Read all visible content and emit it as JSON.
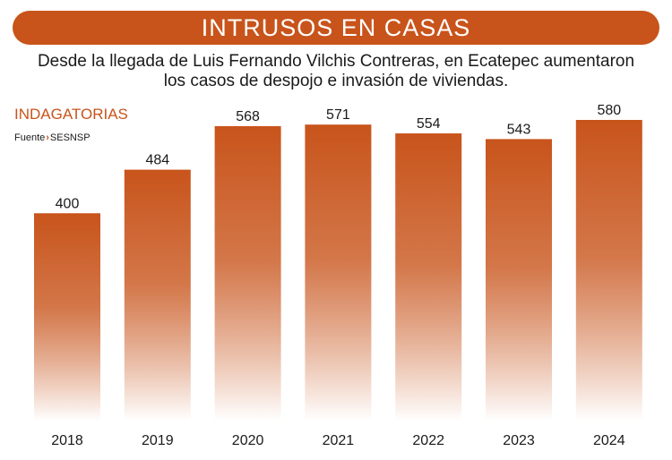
{
  "header": {
    "title": "INTRUSOS EN CASAS",
    "subtitle_line1": "Desde la llegada de Luis Fernando Vilchis Contreras, en Ecatepec aumentaron",
    "subtitle_line2": "los casos de despojo e invasión de viviendas."
  },
  "legend": {
    "metric": "INDAGATORIAS",
    "source_label": "Fuente",
    "source_sep": "›",
    "source_value": "SESNSP"
  },
  "colors": {
    "accent": "#c8541b",
    "bar_top": "#c8541b",
    "bar_bottom": "#ffffff"
  },
  "chart_data": {
    "type": "bar",
    "title": "INTRUSOS EN CASAS",
    "xlabel": "",
    "ylabel": "INDAGATORIAS",
    "categories": [
      "2018",
      "2019",
      "2020",
      "2021",
      "2022",
      "2023",
      "2024"
    ],
    "values": [
      400,
      484,
      568,
      571,
      554,
      543,
      580
    ],
    "ylim": [
      0,
      580
    ],
    "grid": false
  }
}
